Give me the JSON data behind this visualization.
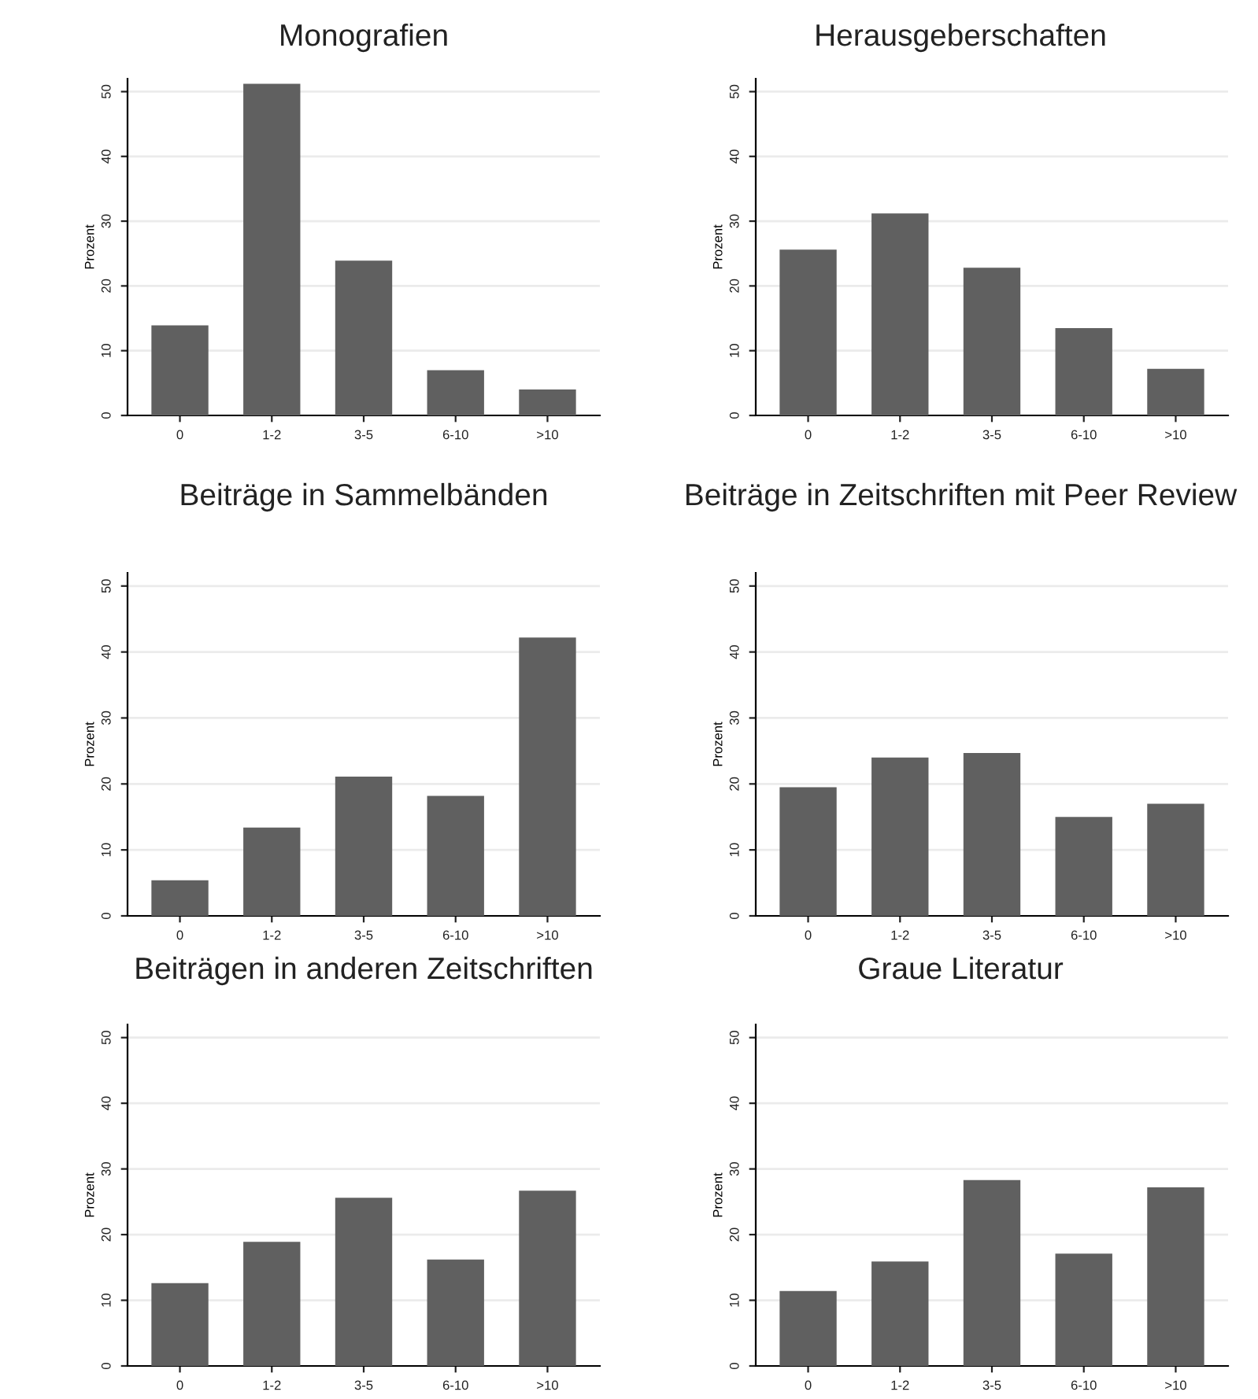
{
  "chart_data": [
    {
      "type": "bar",
      "title": "Monografien",
      "ylabel": "Prozent",
      "categories": [
        "0",
        "1-2",
        "3-5",
        "6-10",
        ">10"
      ],
      "values": [
        13.9,
        51.2,
        23.9,
        7.0,
        4.0
      ],
      "color": "#606060",
      "ylim": [
        0,
        52
      ],
      "yticks": [
        0,
        10,
        20,
        30,
        40,
        50
      ],
      "grid": "y"
    },
    {
      "type": "bar",
      "title": "Herausgeberschaften",
      "ylabel": "Prozent",
      "categories": [
        "0",
        "1-2",
        "3-5",
        "6-10",
        ">10"
      ],
      "values": [
        25.6,
        31.2,
        22.8,
        13.5,
        7.2
      ],
      "color": "#606060",
      "ylim": [
        0,
        52
      ],
      "yticks": [
        0,
        10,
        20,
        30,
        40,
        50
      ],
      "grid": "y"
    },
    {
      "type": "bar",
      "title": "Beiträge in Sammelbänden",
      "ylabel": "Prozent",
      "categories": [
        "0",
        "1-2",
        "3-5",
        "6-10",
        ">10"
      ],
      "values": [
        5.4,
        13.4,
        21.1,
        18.2,
        42.2
      ],
      "color": "#606060",
      "ylim": [
        0,
        52
      ],
      "yticks": [
        0,
        10,
        20,
        30,
        40,
        50
      ],
      "grid": "y"
    },
    {
      "type": "bar",
      "title": "Beiträge in Zeitschriften mit Peer Review",
      "ylabel": "Prozent",
      "categories": [
        "0",
        "1-2",
        "3-5",
        "6-10",
        ">10"
      ],
      "values": [
        19.5,
        24.0,
        24.7,
        15.0,
        17.0
      ],
      "color": "#606060",
      "ylim": [
        0,
        52
      ],
      "yticks": [
        0,
        10,
        20,
        30,
        40,
        50
      ],
      "grid": "y"
    },
    {
      "type": "bar",
      "title": "Beiträgen in anderen Zeitschriften",
      "ylabel": "Prozent",
      "categories": [
        "0",
        "1-2",
        "3-5",
        "6-10",
        ">10"
      ],
      "values": [
        12.6,
        18.9,
        25.6,
        16.2,
        26.7
      ],
      "color": "#606060",
      "ylim": [
        0,
        52
      ],
      "yticks": [
        0,
        10,
        20,
        30,
        40,
        50
      ],
      "grid": "y"
    },
    {
      "type": "bar",
      "title": "Graue Literatur",
      "ylabel": "Prozent",
      "categories": [
        "0",
        "1-2",
        "3-5",
        "6-10",
        ">10"
      ],
      "values": [
        11.4,
        15.9,
        28.3,
        17.1,
        27.2
      ],
      "color": "#606060",
      "ylim": [
        0,
        52
      ],
      "yticks": [
        0,
        10,
        20,
        30,
        40,
        50
      ],
      "grid": "y"
    }
  ]
}
